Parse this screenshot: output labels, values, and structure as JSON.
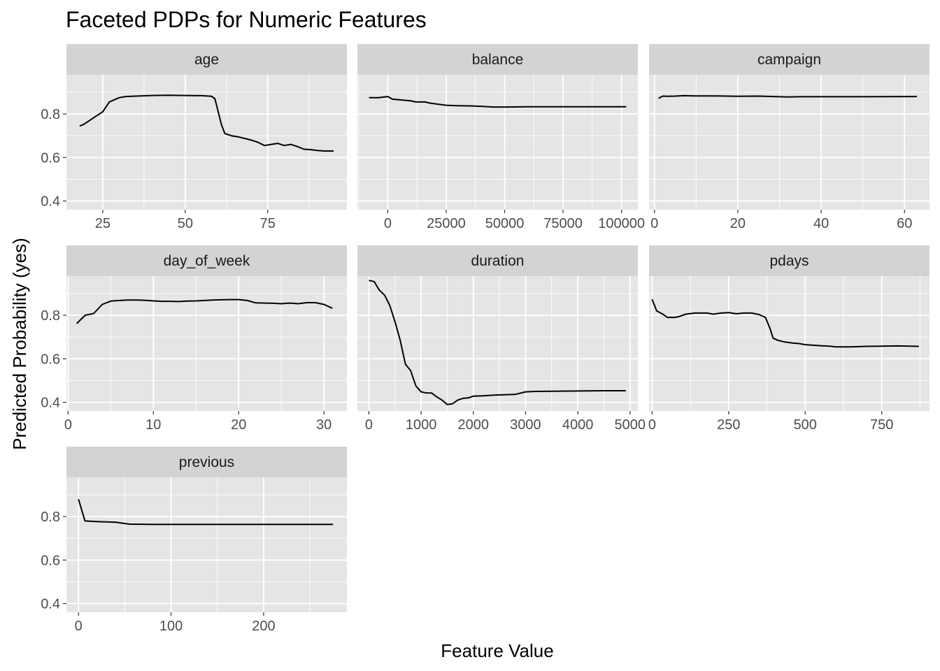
{
  "chart_data": {
    "type": "line",
    "title": "Faceted PDPs for Numeric Features",
    "xlabel": "Feature Value",
    "ylabel": "Predicted Probability (yes)",
    "ylim": [
      0.36,
      0.98
    ],
    "y_ticks": [
      0.4,
      0.6,
      0.8
    ],
    "y_tick_labels": [
      "0.4",
      "0.6",
      "0.8"
    ],
    "grid": true,
    "line_color": "#000000",
    "panel_background": "#e5e5e5",
    "strip_background": "#d3d3d3",
    "grid_color": "#ffffff",
    "facets": [
      {
        "name": "age",
        "xlim": [
          14,
          99
        ],
        "x_ticks": [
          25,
          50,
          75
        ],
        "x_tick_labels": [
          "25",
          "50",
          "75"
        ],
        "x": [
          18,
          19,
          21,
          23,
          25,
          27,
          30,
          32,
          35,
          40,
          45,
          50,
          55,
          58,
          59,
          61,
          62,
          64,
          66,
          70,
          72,
          74,
          76,
          78,
          80,
          82,
          84,
          86,
          88,
          90,
          92,
          95
        ],
        "y": [
          0.745,
          0.75,
          0.77,
          0.79,
          0.81,
          0.855,
          0.875,
          0.88,
          0.882,
          0.885,
          0.886,
          0.885,
          0.884,
          0.881,
          0.87,
          0.75,
          0.71,
          0.7,
          0.695,
          0.68,
          0.67,
          0.655,
          0.66,
          0.665,
          0.655,
          0.66,
          0.65,
          0.638,
          0.636,
          0.632,
          0.63,
          0.63
        ]
      },
      {
        "name": "balance",
        "xlim": [
          -13000,
          107000
        ],
        "x_ticks": [
          0,
          25000,
          50000,
          75000,
          100000
        ],
        "x_tick_labels": [
          "0",
          "25000",
          "50000",
          "75000",
          "100000"
        ],
        "x": [
          -8000,
          -4000,
          0,
          2000,
          5000,
          10000,
          12000,
          16000,
          18000,
          25000,
          30000,
          35000,
          40000,
          45000,
          50000,
          60000,
          80000,
          102000
        ],
        "y": [
          0.875,
          0.875,
          0.88,
          0.868,
          0.865,
          0.86,
          0.855,
          0.855,
          0.85,
          0.84,
          0.838,
          0.837,
          0.835,
          0.832,
          0.832,
          0.833,
          0.833,
          0.833
        ]
      },
      {
        "name": "campaign",
        "xlim": [
          -1.3,
          66
        ],
        "x_ticks": [
          0,
          20,
          40,
          60
        ],
        "x_tick_labels": [
          "0",
          "20",
          "40",
          "60"
        ],
        "x": [
          1,
          2,
          3,
          5,
          7,
          10,
          15,
          20,
          25,
          30,
          32,
          35,
          40,
          50,
          63
        ],
        "y": [
          0.872,
          0.882,
          0.881,
          0.882,
          0.884,
          0.883,
          0.883,
          0.881,
          0.882,
          0.879,
          0.878,
          0.879,
          0.879,
          0.879,
          0.88
        ]
      },
      {
        "name": "day_of_week",
        "xlim": [
          -0.2,
          32.7
        ],
        "x_ticks": [
          0,
          10,
          20,
          30
        ],
        "x_tick_labels": [
          "0",
          "10",
          "20",
          "30"
        ],
        "x": [
          1,
          2,
          3,
          4,
          5,
          6,
          7,
          8,
          9,
          10,
          11,
          12,
          13,
          14,
          15,
          16,
          17,
          18,
          19,
          20,
          21,
          22,
          23,
          24,
          25,
          26,
          27,
          28,
          29,
          30,
          31
        ],
        "y": [
          0.762,
          0.8,
          0.808,
          0.85,
          0.865,
          0.868,
          0.87,
          0.87,
          0.869,
          0.866,
          0.864,
          0.864,
          0.863,
          0.865,
          0.866,
          0.868,
          0.87,
          0.871,
          0.872,
          0.872,
          0.868,
          0.857,
          0.856,
          0.855,
          0.853,
          0.856,
          0.853,
          0.858,
          0.858,
          0.85,
          0.832
        ]
      },
      {
        "name": "duration",
        "xlim": [
          -220,
          5150
        ],
        "x_ticks": [
          0,
          1000,
          2000,
          3000,
          4000,
          5000
        ],
        "x_tick_labels": [
          "0",
          "1000",
          "2000",
          "3000",
          "4000",
          "5000"
        ],
        "x": [
          0,
          100,
          200,
          300,
          400,
          500,
          600,
          700,
          800,
          900,
          1000,
          1100,
          1200,
          1300,
          1400,
          1500,
          1600,
          1700,
          1800,
          1900,
          2000,
          2200,
          2400,
          2600,
          2800,
          3000,
          3200,
          3500,
          4000,
          4500,
          4918
        ],
        "y": [
          0.96,
          0.955,
          0.915,
          0.893,
          0.845,
          0.77,
          0.685,
          0.575,
          0.545,
          0.475,
          0.448,
          0.443,
          0.443,
          0.425,
          0.41,
          0.39,
          0.393,
          0.41,
          0.418,
          0.42,
          0.428,
          0.43,
          0.433,
          0.435,
          0.436,
          0.448,
          0.45,
          0.451,
          0.452,
          0.453,
          0.453
        ]
      },
      {
        "name": "pdays",
        "xlim": [
          -10,
          906
        ],
        "x_ticks": [
          0,
          250,
          500,
          750
        ],
        "x_tick_labels": [
          "0",
          "250",
          "500",
          "750"
        ],
        "x": [
          0,
          15,
          35,
          50,
          75,
          90,
          110,
          140,
          180,
          200,
          225,
          250,
          275,
          300,
          325,
          350,
          370,
          385,
          395,
          410,
          430,
          460,
          480,
          500,
          550,
          580,
          600,
          650,
          700,
          750,
          800,
          871
        ],
        "y": [
          0.873,
          0.82,
          0.805,
          0.79,
          0.79,
          0.795,
          0.805,
          0.81,
          0.81,
          0.805,
          0.81,
          0.812,
          0.807,
          0.81,
          0.81,
          0.803,
          0.79,
          0.74,
          0.695,
          0.685,
          0.678,
          0.672,
          0.67,
          0.665,
          0.66,
          0.658,
          0.655,
          0.655,
          0.657,
          0.658,
          0.659,
          0.657
        ]
      },
      {
        "name": "previous",
        "xlim": [
          -13,
          290
        ],
        "x_ticks": [
          0,
          100,
          200
        ],
        "x_tick_labels": [
          "0",
          "100",
          "200"
        ],
        "x": [
          0,
          7,
          15,
          25,
          40,
          55,
          80,
          120,
          200,
          275
        ],
        "y": [
          0.88,
          0.78,
          0.778,
          0.776,
          0.774,
          0.765,
          0.764,
          0.764,
          0.764,
          0.764
        ]
      }
    ]
  }
}
